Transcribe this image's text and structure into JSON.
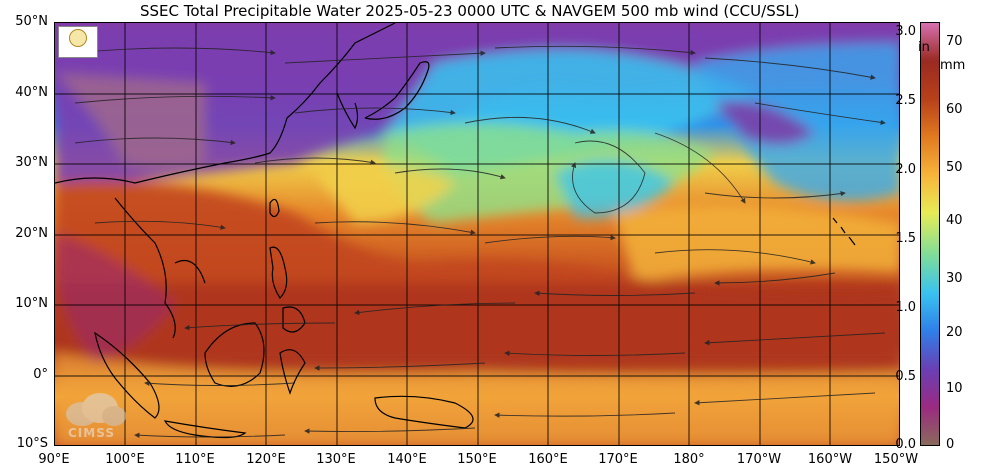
{
  "title": "SSEC Total Precipitable Water  2025-05-23 0000 UTC & NAVGEM 500 mb wind (CCU/SSL)",
  "latitude_labels": [
    "50°N",
    "40°N",
    "30°N",
    "20°N",
    "10°N",
    "0°",
    "10°S"
  ],
  "longitude_labels": [
    "90°E",
    "100°E",
    "110°E",
    "120°E",
    "130°E",
    "140°E",
    "150°E",
    "160°E",
    "170°E",
    "180°",
    "170°W",
    "160°W",
    "150°W"
  ],
  "colorbar": {
    "unit_in": "in",
    "unit_mm": "mm",
    "in_ticks": [
      "3.0",
      "2.5",
      "2.0",
      "1.5",
      "1.0",
      "0.5",
      "0.0"
    ],
    "mm_ticks": [
      "70",
      "60",
      "50",
      "40",
      "30",
      "20",
      "10",
      "0"
    ],
    "scale_colors": [
      "#8a6a5c",
      "#9b2a82",
      "#6a3fb5",
      "#2f7fe8",
      "#39c3f0",
      "#7fdc9a",
      "#e7ec55",
      "#f7b43a",
      "#e07a20",
      "#b8401a",
      "#9a2a22",
      "#d670b0"
    ]
  },
  "logos": {
    "top_left": "ssec-logo",
    "bottom_left_text": "CIMSS"
  },
  "colors": {
    "dry": "#7b3fa8",
    "moist": "#b8401a",
    "mid": "#3ab8ee"
  }
}
